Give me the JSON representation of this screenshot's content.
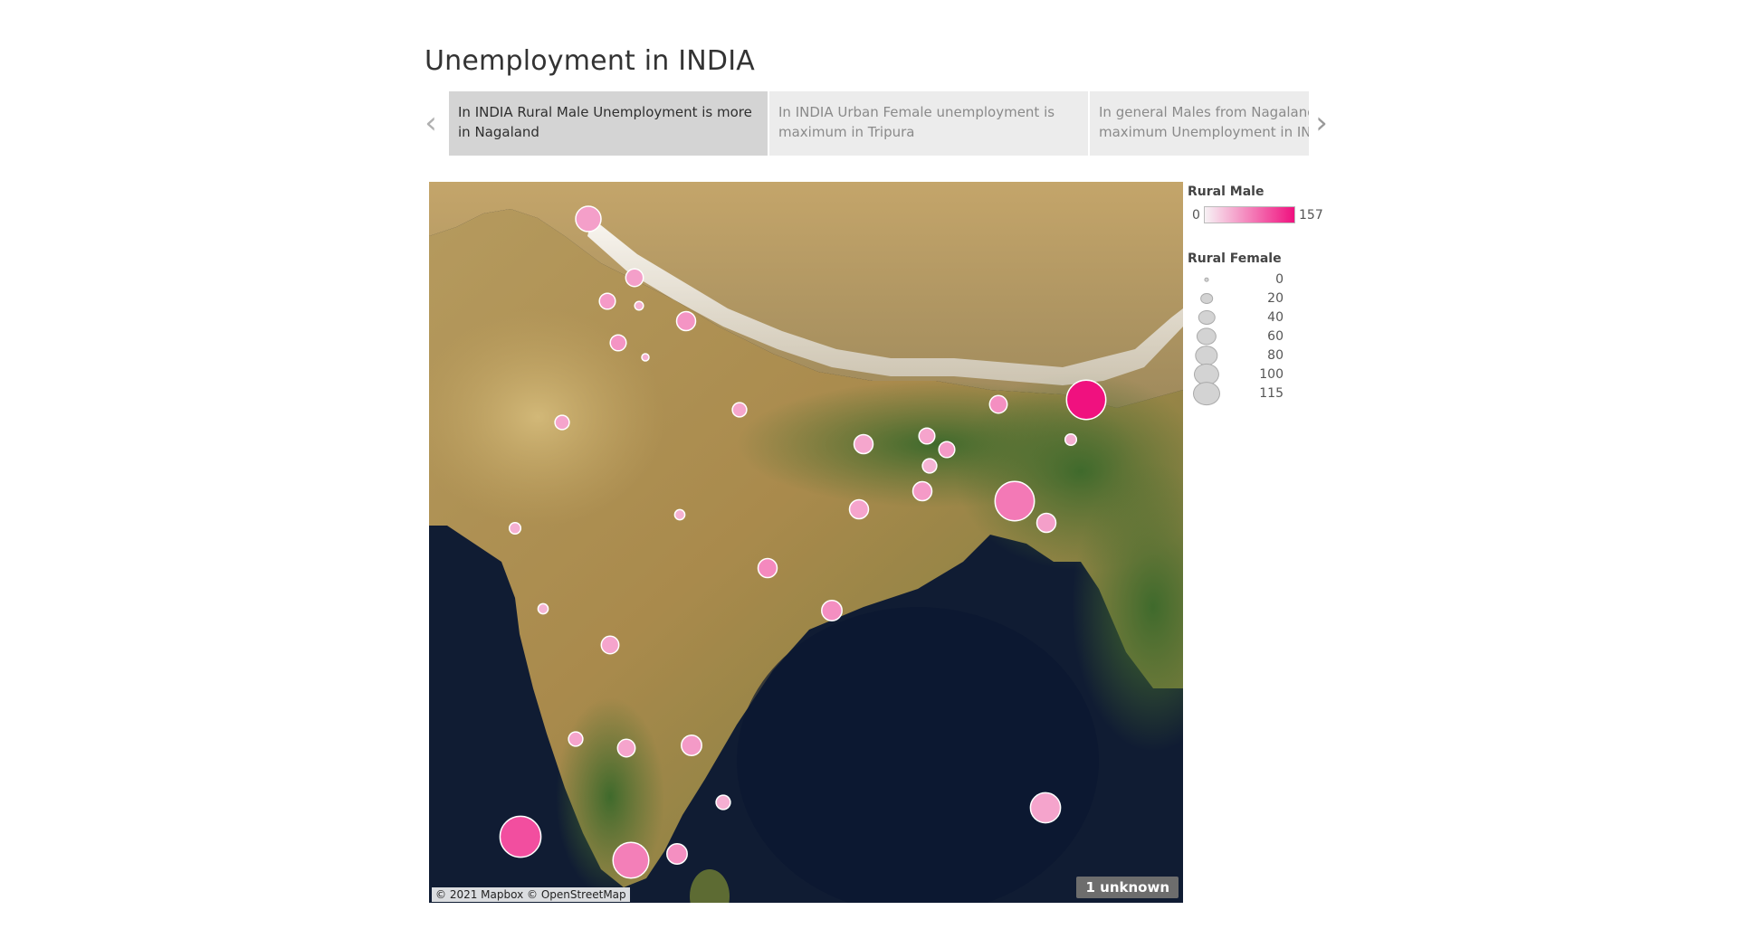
{
  "title": "Unemployment in INDIA",
  "story_points": [
    {
      "text": "In INDIA Rural Male Unemployment is more in Nagaland",
      "active": true
    },
    {
      "text": "In INDIA Urban Female unemployment is maximum in Tripura",
      "active": false
    },
    {
      "text": "In general Males from Nagaland face maximum Unemployment in INDIA",
      "active": false
    }
  ],
  "nav": {
    "prev_icon": "chevron-left-icon",
    "next_icon": "chevron-right-icon",
    "prev_glyph": "‹",
    "next_glyph": "›"
  },
  "map": {
    "attribution": "© 2021 Mapbox © OpenStreetMap",
    "unknown_badge": "1 unknown",
    "markers": [
      {
        "state": "marker",
        "rural_male": 25,
        "rural_female": 25
      },
      {
        "state": "marker",
        "rural_male": 25,
        "rural_female": 12
      },
      {
        "state": "marker",
        "rural_male": 30,
        "rural_female": 10
      },
      {
        "state": "marker",
        "rural_male": 8,
        "rural_female": 3
      },
      {
        "state": "marker",
        "rural_male": 35,
        "rural_female": 14
      },
      {
        "state": "marker",
        "rural_male": 35,
        "rural_female": 10
      },
      {
        "state": "marker",
        "rural_male": 8,
        "rural_female": 2
      },
      {
        "state": "marker",
        "rural_male": 20,
        "rural_female": 8
      },
      {
        "state": "marker",
        "rural_male": 18,
        "rural_female": 8
      },
      {
        "state": "marker",
        "rural_male": 18,
        "rural_female": 14
      },
      {
        "state": "marker",
        "rural_male": 20,
        "rural_female": 10
      },
      {
        "state": "marker",
        "rural_male": 30,
        "rural_female": 10
      },
      {
        "state": "marker",
        "rural_male": 5,
        "rural_female": 8
      },
      {
        "state": "marker",
        "rural_male": 157,
        "rural_female": 60
      },
      {
        "state": "marker",
        "rural_male": 40,
        "rural_female": 12
      },
      {
        "state": "marker",
        "rural_male": 10,
        "rural_female": 5
      },
      {
        "state": "marker",
        "rural_male": 30,
        "rural_female": 14
      },
      {
        "state": "marker",
        "rural_male": 60,
        "rural_female": 60
      },
      {
        "state": "marker",
        "rural_male": 25,
        "rural_female": 14
      },
      {
        "state": "marker",
        "rural_male": 20,
        "rural_female": 14
      },
      {
        "state": "marker",
        "rural_male": 8,
        "rural_female": 4
      },
      {
        "state": "marker",
        "rural_male": 10,
        "rural_female": 5
      },
      {
        "state": "marker",
        "rural_male": 45,
        "rural_female": 14
      },
      {
        "state": "marker",
        "rural_male": 40,
        "rural_female": 16
      },
      {
        "state": "marker",
        "rural_male": 5,
        "rural_female": 4
      },
      {
        "state": "marker",
        "rural_male": 20,
        "rural_female": 12
      },
      {
        "state": "marker",
        "rural_male": 20,
        "rural_female": 8
      },
      {
        "state": "marker",
        "rural_male": 20,
        "rural_female": 12
      },
      {
        "state": "marker",
        "rural_male": 30,
        "rural_female": 16
      },
      {
        "state": "marker",
        "rural_male": 10,
        "rural_female": 8
      },
      {
        "state": "marker",
        "rural_male": 20,
        "rural_female": 35
      },
      {
        "state": "marker",
        "rural_male": 100,
        "rural_female": 65
      },
      {
        "state": "marker",
        "rural_male": 55,
        "rural_female": 50
      },
      {
        "state": "marker",
        "rural_male": 40,
        "rural_female": 16
      }
    ]
  },
  "legend": {
    "color_title": "Rural Male",
    "color_min": "0",
    "color_max": "157",
    "color_low": "#f7f2f5",
    "color_high": "#f0117f",
    "size_title": "Rural Female",
    "size_items": [
      {
        "label": "0",
        "value": 0
      },
      {
        "label": "20",
        "value": 20
      },
      {
        "label": "40",
        "value": 40
      },
      {
        "label": "60",
        "value": 60
      },
      {
        "label": "80",
        "value": 80
      },
      {
        "label": "100",
        "value": 100
      },
      {
        "label": "115",
        "value": 115
      }
    ]
  }
}
